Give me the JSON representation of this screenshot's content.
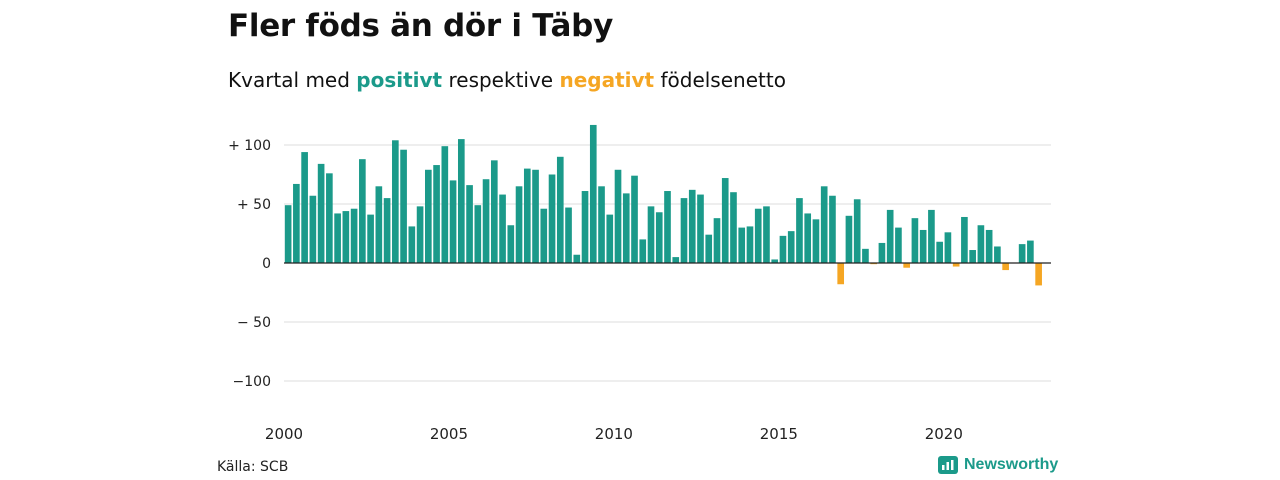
{
  "title": "Fler föds än dör i Täby",
  "subtitle": {
    "prefix": "Kvartal med ",
    "positive": "positivt",
    "middle": " respektive ",
    "negative": "negativt",
    "suffix": " födelsenetto"
  },
  "source": "Källa: SCB",
  "brand": {
    "name": "Newsworthy",
    "icon": "newsworthy-logo-icon"
  },
  "colors": {
    "positive": "#1b9a8a",
    "negative": "#f5a623",
    "grid": "#dddddd",
    "zero": "#222222"
  },
  "chart_data": {
    "type": "bar",
    "title": "Fler föds än dör i Täby",
    "subtitle": "Kvartal med positivt respektive negativt födelsenetto",
    "x_start": 2000,
    "x_step": 0.25,
    "xlim": [
      2000,
      2023.25
    ],
    "x_ticks": [
      2000,
      2005,
      2010,
      2015,
      2020
    ],
    "ylim": [
      -120,
      115
    ],
    "y_ticks": [
      100,
      50,
      0,
      -50,
      -100
    ],
    "y_tick_labels": [
      "+ 100",
      "+  50",
      "0",
      "− 50",
      "−100"
    ],
    "grid": true,
    "values": [
      49,
      67,
      94,
      57,
      84,
      76,
      42,
      44,
      46,
      88,
      41,
      65,
      55,
      104,
      96,
      31,
      48,
      79,
      83,
      99,
      70,
      105,
      66,
      49,
      71,
      87,
      58,
      32,
      65,
      80,
      79,
      46,
      75,
      90,
      47,
      7,
      61,
      117,
      65,
      41,
      79,
      59,
      74,
      20,
      48,
      43,
      61,
      5,
      55,
      62,
      58,
      24,
      38,
      72,
      60,
      30,
      31,
      46,
      48,
      3,
      23,
      27,
      55,
      42,
      37,
      65,
      57,
      -18,
      40,
      54,
      12,
      -1,
      17,
      45,
      30,
      -4,
      38,
      28,
      45,
      18,
      26,
      -3,
      39,
      11,
      32,
      28,
      14,
      -6,
      0,
      16,
      19,
      -19
    ]
  }
}
